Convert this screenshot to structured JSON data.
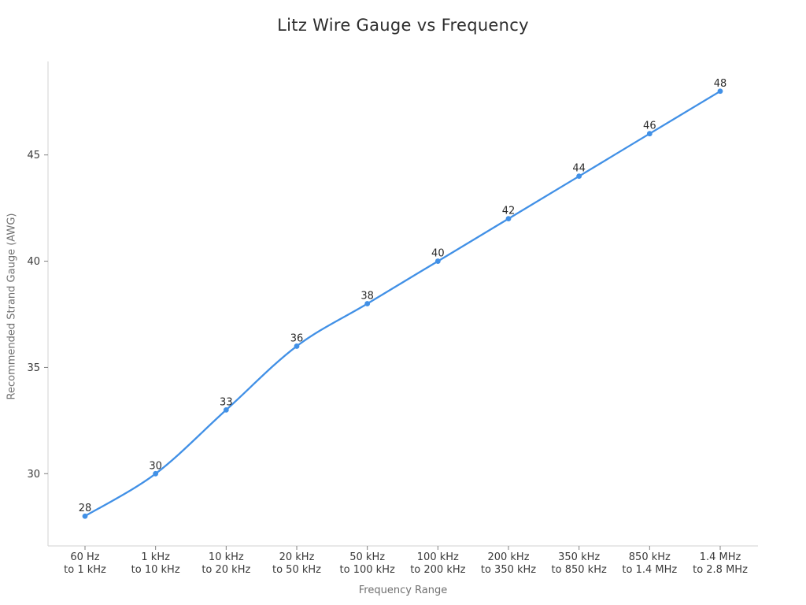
{
  "chart_data": {
    "type": "line",
    "title": "Litz Wire Gauge vs Frequency",
    "xlabel": "Frequency Range",
    "ylabel": "Recommended Strand Gauge (AWG)",
    "categories": [
      [
        "60 Hz",
        "to 1 kHz"
      ],
      [
        "1 kHz",
        "to 10 kHz"
      ],
      [
        "10 kHz",
        "to 20 kHz"
      ],
      [
        "20 kHz",
        "to 50 kHz"
      ],
      [
        "50 kHz",
        "to 100 kHz"
      ],
      [
        "100 kHz",
        "to 200 kHz"
      ],
      [
        "200 kHz",
        "to 350 kHz"
      ],
      [
        "350 kHz",
        "to 850 kHz"
      ],
      [
        "850 kHz",
        "to 1.4 MHz"
      ],
      [
        "1.4 MHz",
        "to 2.8 MHz"
      ]
    ],
    "values": [
      28,
      30,
      33,
      36,
      38,
      40,
      42,
      44,
      46,
      48
    ],
    "yticks": [
      30,
      35,
      40,
      45
    ],
    "ylim": [
      26.6,
      49.4
    ],
    "grid": false,
    "legend": null,
    "line_shape": "spline",
    "data_labels_shown": true,
    "colors": {
      "line": "#4190e6",
      "marker": "#4190e6",
      "spine": "#d9d9d9",
      "tick_mark": "#808080",
      "tick_label": "#3a3a3a",
      "data_label": "#2b2b2b",
      "title": "#2d2d2d",
      "axis_title": "#707070",
      "background": "#ffffff"
    }
  }
}
